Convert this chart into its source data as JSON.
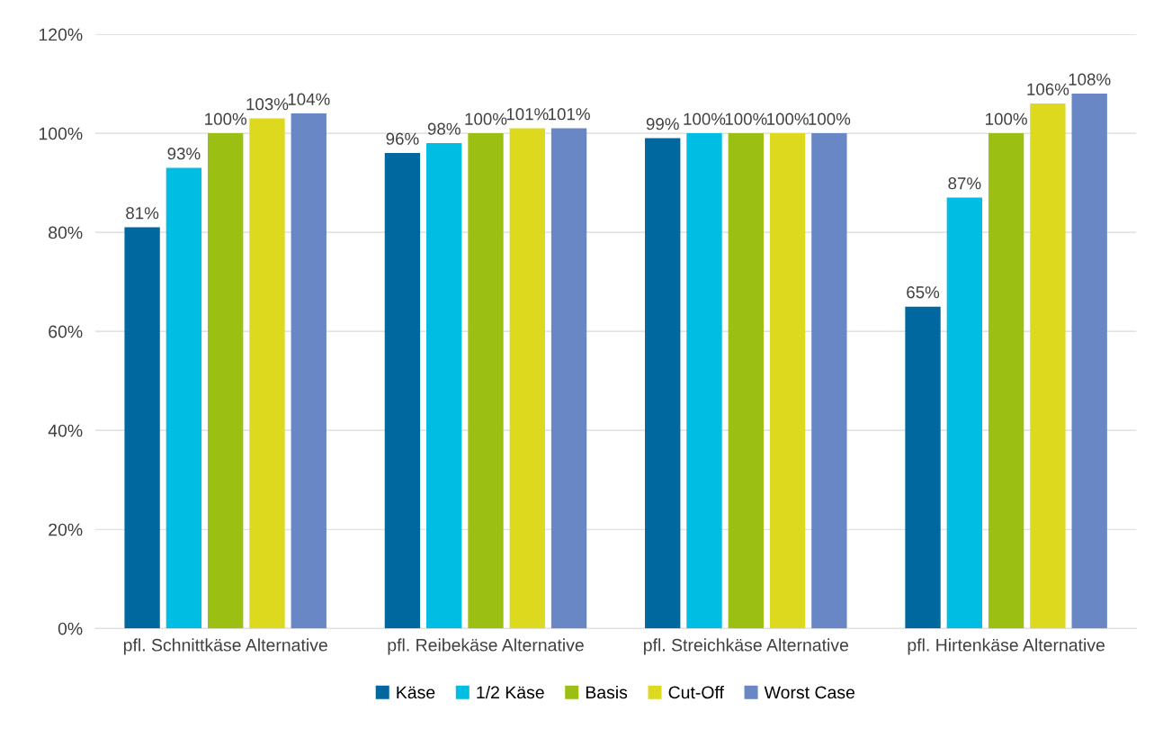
{
  "chart_data": {
    "type": "bar",
    "categories": [
      "pfl. Schnittkäse Alternative",
      "pfl. Reibekäse Alternative",
      "pfl. Streichkäse Alternative",
      "pfl. Hirtenkäse Alternative"
    ],
    "series": [
      {
        "name": "Käse",
        "color": "#00679f",
        "values": [
          81,
          96,
          99,
          65
        ],
        "value_labels": [
          "81%",
          "96%",
          "99%",
          "65%"
        ]
      },
      {
        "name": "1/2 Käse",
        "color": "#00bde3",
        "values": [
          93,
          98,
          100,
          87
        ],
        "value_labels": [
          "93%",
          "98%",
          "100%",
          "87%"
        ]
      },
      {
        "name": "Basis",
        "color": "#9bbf12",
        "values": [
          100,
          100,
          100,
          100
        ],
        "value_labels": [
          "100%",
          "100%",
          "100%",
          "100%"
        ]
      },
      {
        "name": "Cut-Off",
        "color": "#dcd91f",
        "values": [
          103,
          101,
          100,
          106
        ],
        "value_labels": [
          "103%",
          "101%",
          "100%",
          "106%"
        ]
      },
      {
        "name": "Worst Case",
        "color": "#6887c4",
        "values": [
          104,
          101,
          100,
          108
        ],
        "value_labels": [
          "104%",
          "101%",
          "100%",
          "108%"
        ]
      }
    ],
    "ylim": [
      0,
      120
    ],
    "yticks": [
      {
        "value": 0,
        "label": "0%"
      },
      {
        "value": 20,
        "label": "20%"
      },
      {
        "value": 40,
        "label": "40%"
      },
      {
        "value": 60,
        "label": "60%"
      },
      {
        "value": 80,
        "label": "80%"
      },
      {
        "value": 100,
        "label": "100%"
      },
      {
        "value": 120,
        "label": "120%"
      }
    ],
    "grid": "y",
    "legend": "bottom"
  }
}
